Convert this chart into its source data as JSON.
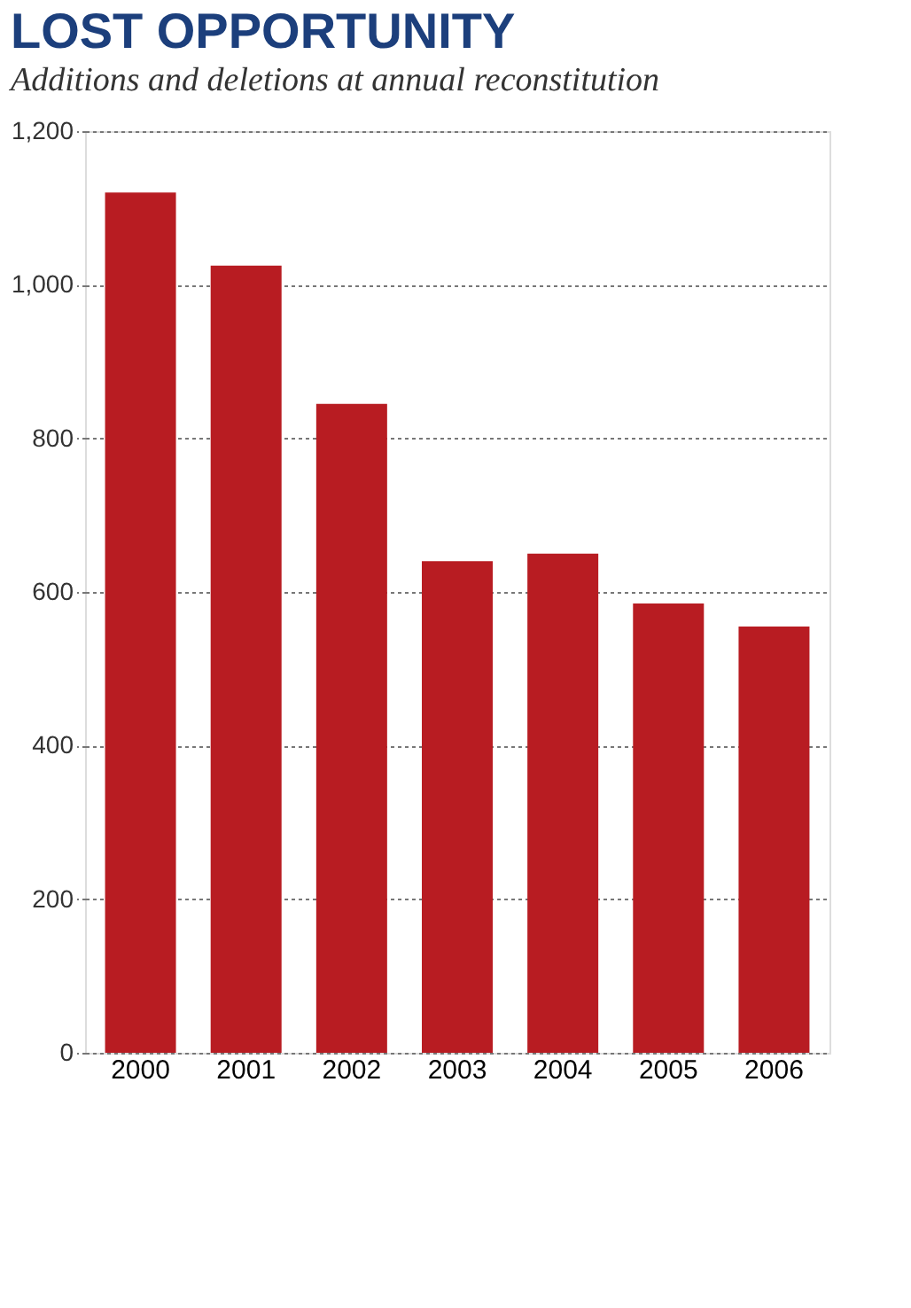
{
  "chart_data": {
    "type": "bar",
    "title": "LOST OPPORTUNITY",
    "subtitle": "Additions and deletions at annual reconstitution",
    "categories": [
      "2000",
      "2001",
      "2002",
      "2003",
      "2004",
      "2005",
      "2006"
    ],
    "values": [
      1120,
      1025,
      845,
      640,
      650,
      585,
      555
    ],
    "color": "#b81c22",
    "ylim": [
      0,
      1200
    ],
    "yticks": [
      0,
      200,
      400,
      600,
      800,
      {
        "value": 1000,
        "label": "1,000"
      },
      {
        "value": 1200,
        "label": "1,200"
      }
    ],
    "grid": "y"
  }
}
